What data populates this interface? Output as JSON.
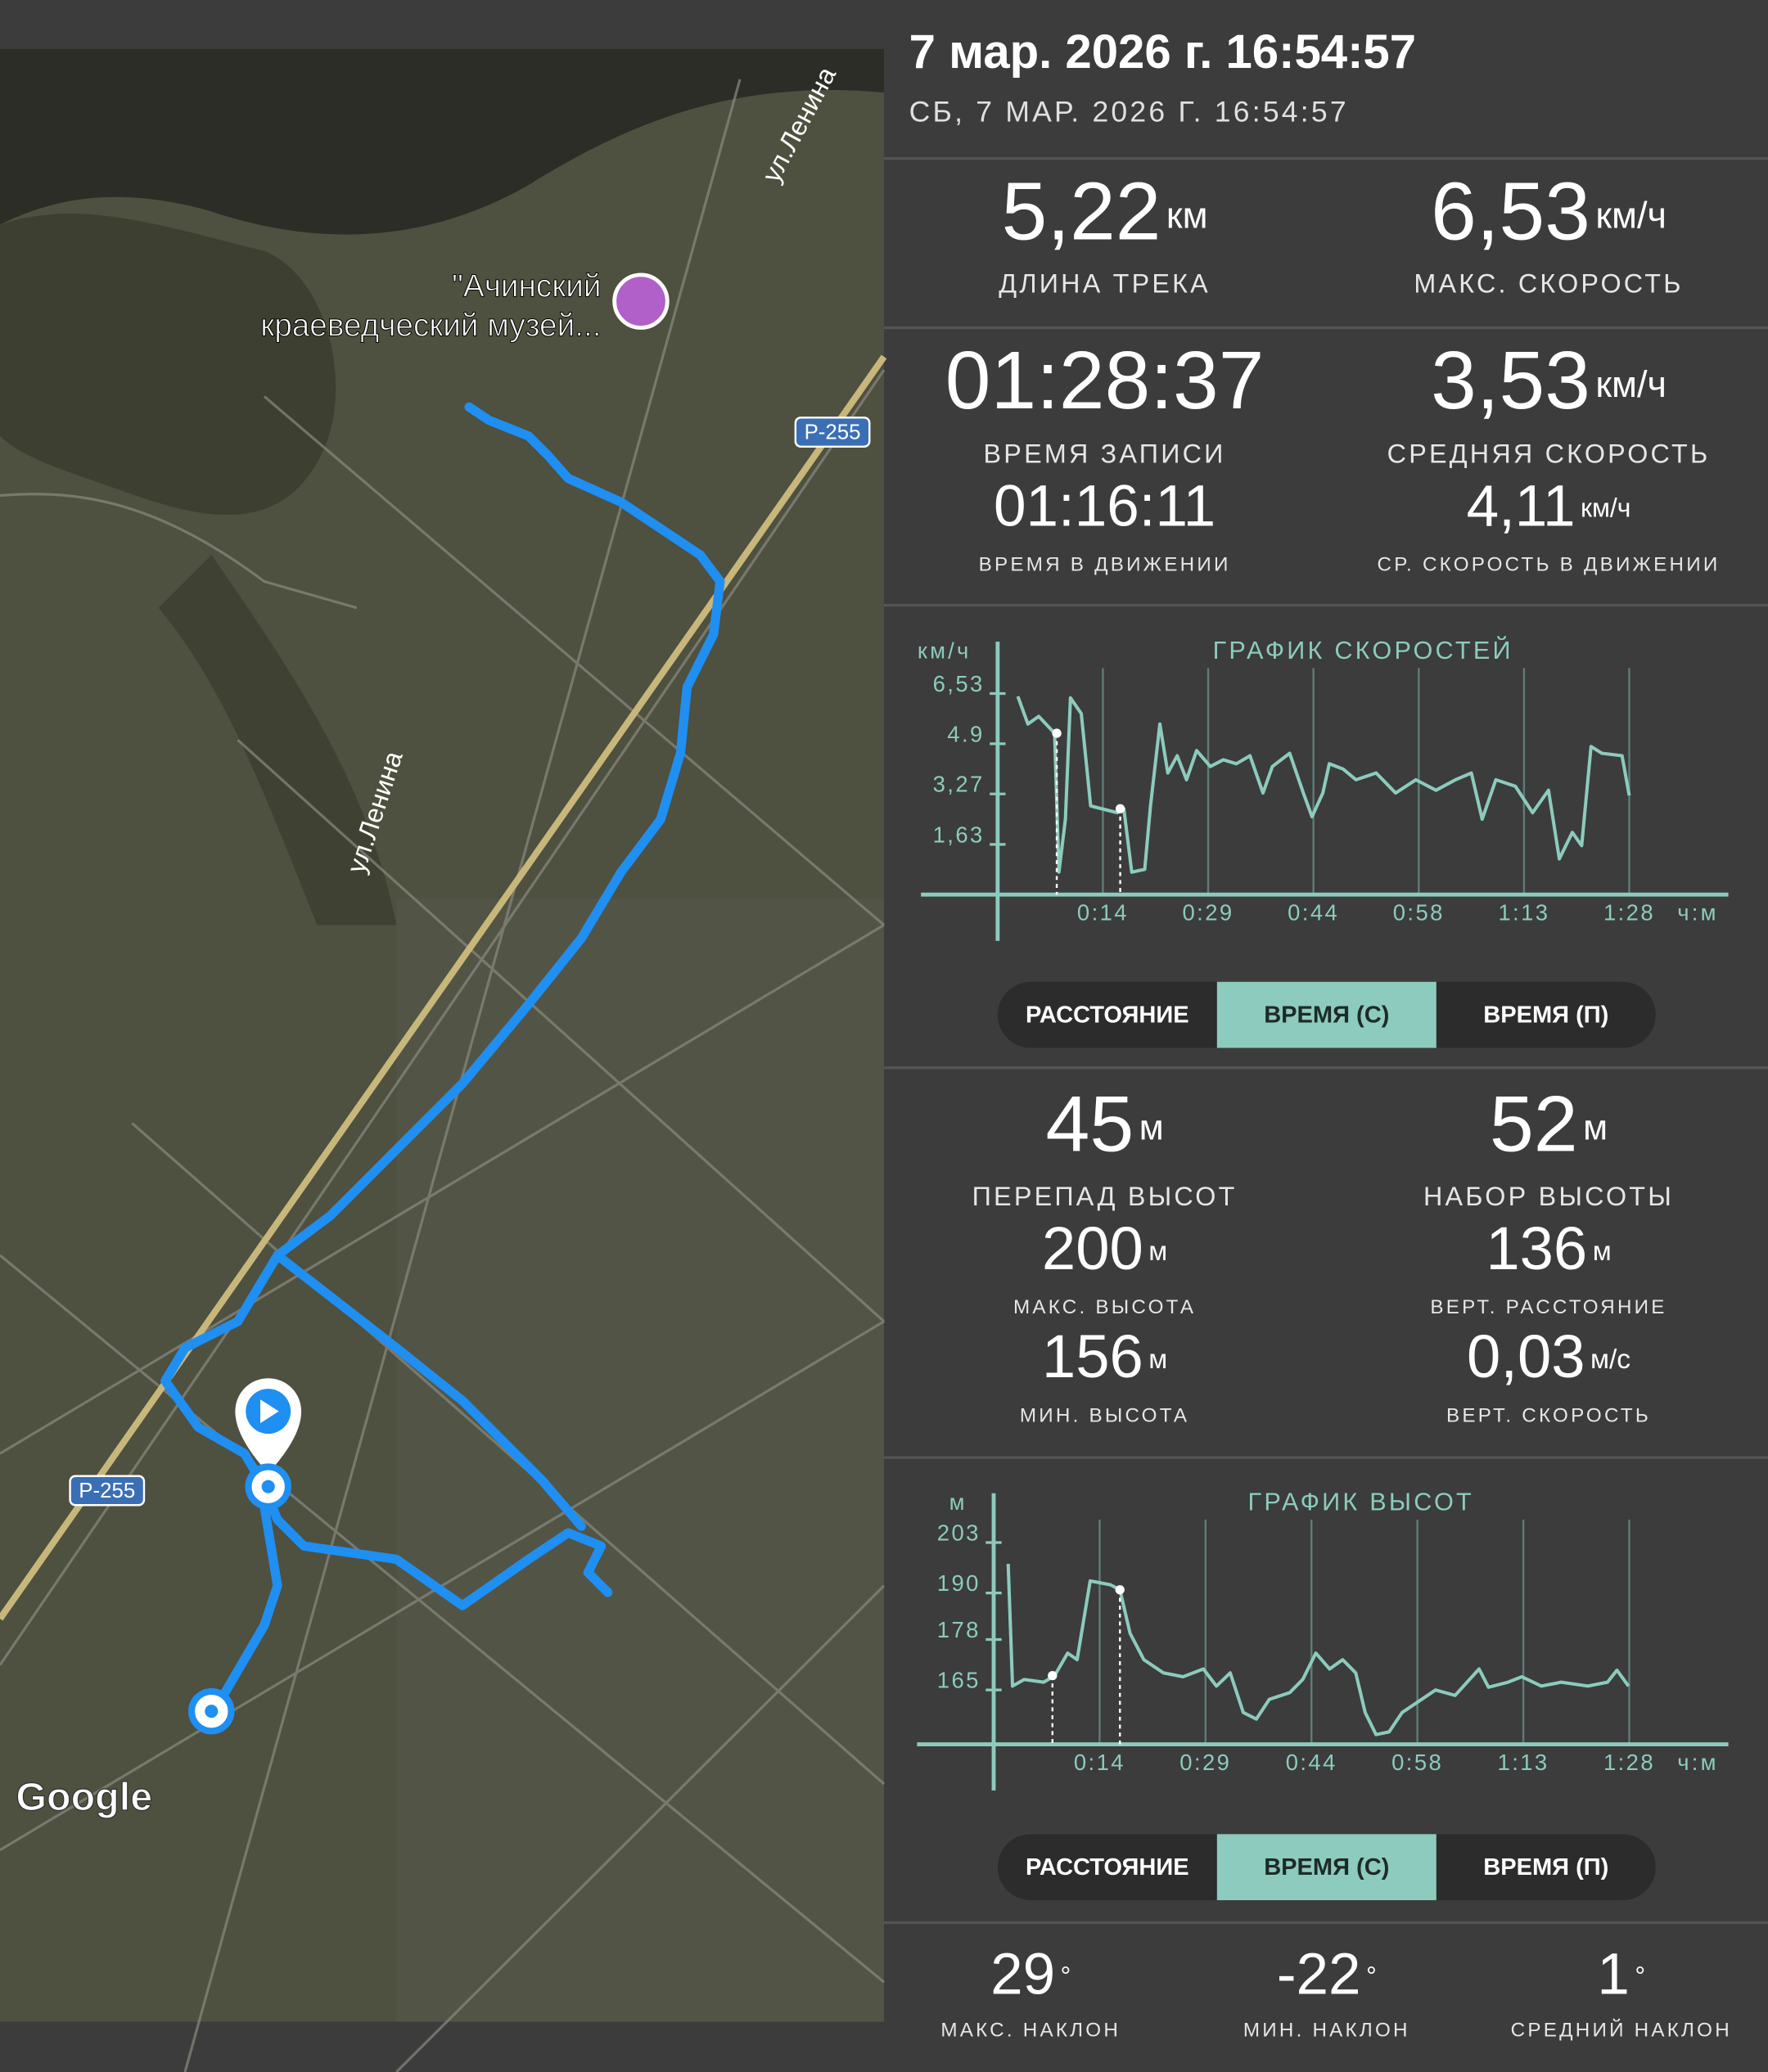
{
  "header": {
    "title": "7 мар. 2026 г. 16:54:57",
    "subtitle": "СБ, 7 МАР. 2026 Г. 16:54:57"
  },
  "map": {
    "labels": [
      "ул.Ленина",
      "ул.Ленина",
      "\"Ачинский",
      "краеведческий музей...",
      "Р-255",
      "Р-255",
      "Google"
    ]
  },
  "speed_stats": [
    {
      "value": "5,22",
      "unit": "км",
      "label": "ДЛИНА ТРЕКА"
    },
    {
      "value": "6,53",
      "unit": "км/ч",
      "label": "МАКС. СКОРОСТЬ"
    },
    {
      "value": "01:28:37",
      "unit": "",
      "label": "ВРЕМЯ ЗАПИСИ"
    },
    {
      "value": "3,53",
      "unit": "км/ч",
      "label": "СРЕДНЯЯ СКОРОСТЬ"
    },
    {
      "value": "01:16:11",
      "unit": "",
      "label": "ВРЕМЯ В ДВИЖЕНИИ"
    },
    {
      "value": "4,11",
      "unit": "км/ч",
      "label": "СР. СКОРОСТЬ В ДВИЖЕНИИ"
    }
  ],
  "chart_data": [
    {
      "type": "line",
      "title": "ГРАФИК СКОРОСТЕЙ",
      "y_unit": "км/ч",
      "x_unit": "ч:м",
      "color": "#8ccbbd",
      "grid": true,
      "xlim": [
        0,
        87.6
      ],
      "ylim": [
        0,
        8
      ],
      "xticks": [
        {
          "value": 14.6,
          "label": "0:14"
        },
        {
          "value": 29.2,
          "label": "0:29"
        },
        {
          "value": 43.8,
          "label": "0:44"
        },
        {
          "value": 58.4,
          "label": "0:58"
        },
        {
          "value": 73,
          "label": "1:13"
        },
        {
          "value": 87.6,
          "label": "1:28"
        }
      ],
      "yticks": [
        {
          "value": 1.63,
          "label": "1,63"
        },
        {
          "value": 3.27,
          "label": "3,27"
        },
        4.9,
        {
          "value": 6.53,
          "label": "6,53"
        }
      ],
      "x": [
        2.8,
        4.2,
        5.7,
        7.9,
        8.5,
        9.4,
        10.1,
        11.6,
        12.9,
        16.6,
        17.5,
        18.6,
        20.4,
        21.2,
        22.5,
        23.6,
        24.9,
        26.2,
        27.6,
        29.5,
        31.3,
        33.1,
        35,
        36.8,
        38.1,
        40.5,
        42.4,
        43.6,
        45.1,
        46,
        47.9,
        49.7,
        52.5,
        55.2,
        58,
        60.8,
        63.5,
        65.7,
        67.2,
        69.1,
        71.8,
        74.2,
        76.4,
        77.9,
        79.7,
        81,
        82.3,
        83.8,
        86.6,
        87.6
      ],
      "values": [
        6.44,
        5.54,
        5.79,
        5.24,
        0.73,
        2.45,
        6.39,
        5.88,
        2.88,
        2.66,
        2.79,
        0.73,
        0.82,
        2.88,
        5.54,
        3.95,
        4.51,
        3.73,
        4.68,
        4.16,
        4.38,
        4.25,
        4.51,
        3.3,
        4.16,
        4.59,
        3.3,
        2.53,
        3.3,
        4.25,
        4.08,
        3.73,
        3.95,
        3.3,
        3.73,
        3.39,
        3.73,
        3.95,
        2.45,
        3.73,
        3.52,
        2.66,
        3.39,
        1.16,
        2.02,
        1.59,
        4.81,
        4.59,
        4.51,
        3.22
      ],
      "markers": [
        {
          "x": 8.2,
          "y": 5.24
        },
        {
          "x": 17,
          "y": 2.79
        }
      ]
    },
    {
      "type": "line",
      "title": "ГРАФИК ВЫСОТ",
      "y_unit": "м",
      "x_unit": "ч:м",
      "color": "#8ccbbd",
      "grid": true,
      "xlim": [
        0,
        87.6
      ],
      "ylim": [
        151,
        214
      ],
      "xticks": [
        {
          "value": 14.6,
          "label": "0:14"
        },
        {
          "value": 29.2,
          "label": "0:29"
        },
        {
          "value": 43.8,
          "label": "0:44"
        },
        {
          "value": 58.4,
          "label": "0:58"
        },
        {
          "value": 73,
          "label": "1:13"
        },
        {
          "value": 87.6,
          "label": "1:28"
        }
      ],
      "yticks": [
        165,
        178,
        190,
        203
      ],
      "x": [
        2,
        2.6,
        4.2,
        6.9,
        8.4,
        10.2,
        11.5,
        13.3,
        16.1,
        17.4,
        18.8,
        20.7,
        23.4,
        26.1,
        28.9,
        30.7,
        32.6,
        34.4,
        36.2,
        38,
        40.8,
        42.6,
        44.4,
        46.3,
        48.1,
        49.9,
        51.2,
        52.7,
        54.5,
        56.3,
        59,
        60.9,
        63.6,
        66.9,
        68.2,
        70.9,
        72.8,
        75.5,
        78.2,
        81.9,
        84.6,
        85.9,
        87.5
      ],
      "values": [
        197.5,
        166,
        167.7,
        167,
        168.7,
        174.5,
        172.8,
        193.1,
        192.1,
        190.8,
        179.6,
        172.8,
        169.4,
        168.4,
        170.4,
        166,
        169.4,
        159.2,
        157.5,
        162.6,
        164.3,
        167.7,
        174.5,
        170.4,
        172.8,
        169.4,
        159.2,
        153.5,
        154.2,
        159.2,
        162.6,
        165,
        163.6,
        170.4,
        165.7,
        167,
        168.4,
        166,
        167,
        166,
        167,
        170.1,
        166
      ],
      "markers": [
        {
          "x": 8.1,
          "y": 168.7
        },
        {
          "x": 17.4,
          "y": 190.8
        }
      ]
    }
  ],
  "speed_toggle": {
    "options": [
      "РАССТОЯНИЕ",
      "ВРЕМЯ (С)",
      "ВРЕМЯ (П)"
    ],
    "selected": 1
  },
  "elevation_stats": [
    {
      "value": "45",
      "unit": "м",
      "label": "ПЕРЕПАД ВЫСОТ"
    },
    {
      "value": "52",
      "unit": "м",
      "label": "НАБОР ВЫСОТЫ"
    },
    {
      "value": "200",
      "unit": "м",
      "label": "МАКС. ВЫСОТА"
    },
    {
      "value": "136",
      "unit": "м",
      "label": "ВЕРТ. РАССТОЯНИЕ"
    },
    {
      "value": "156",
      "unit": "м",
      "label": "МИН. ВЫСОТА"
    },
    {
      "value": "0,03",
      "unit": "м/с",
      "label": "ВЕРТ. СКОРОСТЬ"
    }
  ],
  "elevation_toggle": {
    "options": [
      "РАССТОЯНИЕ",
      "ВРЕМЯ (С)",
      "ВРЕМЯ (П)"
    ],
    "selected": 1
  },
  "slope_stats": [
    {
      "value": "29",
      "unit": "°",
      "label": "МАКС. НАКЛОН"
    },
    {
      "value": "-22",
      "unit": "°",
      "label": "МИН. НАКЛОН"
    },
    {
      "value": "1",
      "unit": "°",
      "label": "СРЕДНИЙ НАКЛОН"
    }
  ]
}
